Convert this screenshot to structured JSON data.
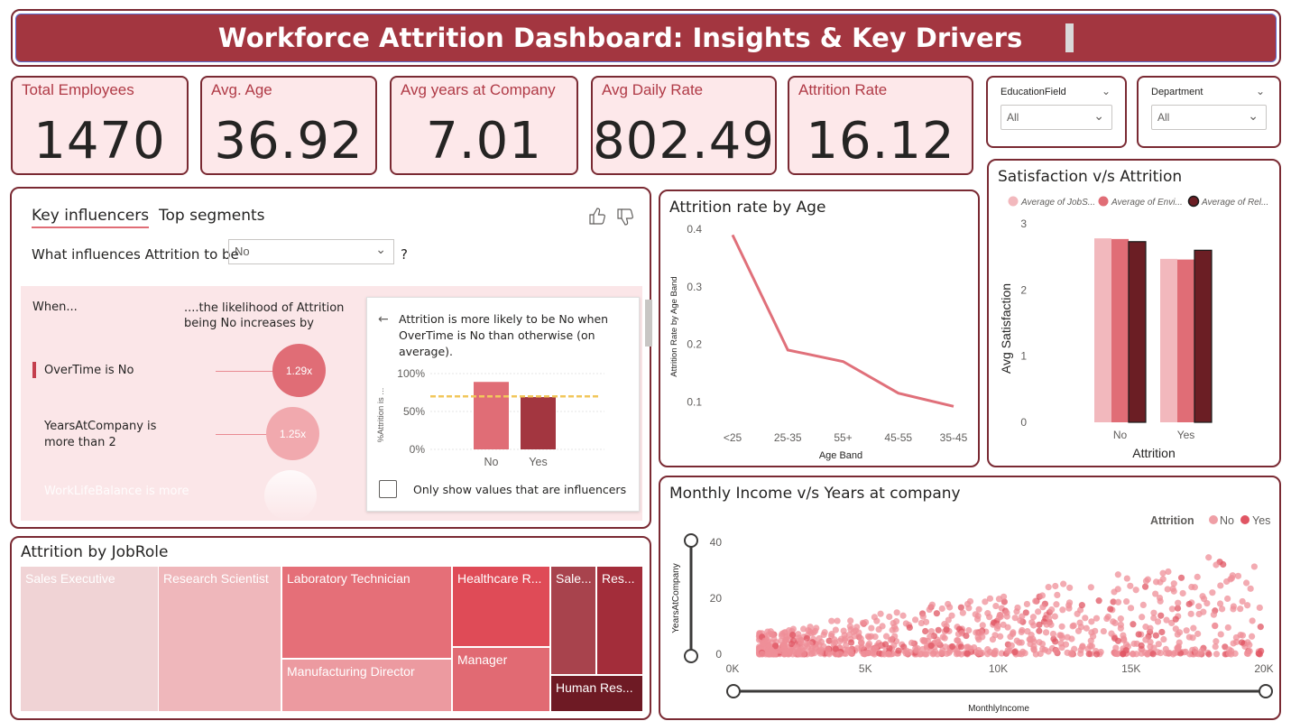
{
  "header": {
    "title": "Workforce Attrition Dashboard: Insights & Key Drivers"
  },
  "kpis": [
    {
      "label": "Total Employees",
      "value": "1470"
    },
    {
      "label": "Avg. Age",
      "value": "36.92"
    },
    {
      "label": "Avg years at Company",
      "value": "7.01"
    },
    {
      "label": "Avg Daily Rate",
      "value": "802.49"
    },
    {
      "label": "Attrition Rate",
      "value": "16.12"
    }
  ],
  "slicers": [
    {
      "label": "EducationField",
      "value": "All"
    },
    {
      "label": "Department",
      "value": "All"
    }
  ],
  "key_influencers": {
    "tab_active": "Key influencers",
    "tab_other": "Top segments",
    "question": "What influences Attrition to be",
    "dropdown_value": "No",
    "question_mark": "?",
    "col_when": "When...",
    "col_likelihood": "....the likelihood of Attrition being No increases by",
    "factors": [
      {
        "label": "OverTime is No",
        "multiplier": "1.29x"
      },
      {
        "label": "YearsAtCompany is more than 2",
        "multiplier": "1.25x"
      },
      {
        "label": "WorkLifeBalance is more",
        "multiplier": ""
      }
    ],
    "detail_text": "Attrition is more likely to be No when OverTime is No than otherwise (on average).",
    "detail_axis_label": "%Attrition is ...",
    "detail_yticks": [
      "100%",
      "50%",
      "0%"
    ],
    "detail_categories": [
      "No",
      "Yes"
    ],
    "detail_values": [
      0.89,
      0.69
    ],
    "detail_average": 0.7,
    "checkbox_label": "Only show values that are influencers"
  },
  "age_chart": {
    "title": "Attrition rate by Age",
    "chart_data": {
      "type": "line",
      "categories": [
        "<25",
        "25-35",
        "55+",
        "45-55",
        "35-45"
      ],
      "values": [
        0.39,
        0.19,
        0.17,
        0.115,
        0.092
      ],
      "xlabel": "Age Band",
      "ylabel": "Attrition Rate by Age Band",
      "yticks": [
        "0.4",
        "0.3",
        "0.2",
        "0.1"
      ],
      "ylim": [
        0.08,
        0.4
      ]
    }
  },
  "satisfaction_chart": {
    "title": "Satisfaction v/s Attrition",
    "chart_data": {
      "type": "bar",
      "categories": [
        "No",
        "Yes"
      ],
      "series": [
        {
          "name": "Average of JobS...",
          "values": [
            2.78,
            2.47
          ]
        },
        {
          "name": "Average of Envi...",
          "values": [
            2.77,
            2.46
          ]
        },
        {
          "name": "Average of Rel...",
          "values": [
            2.73,
            2.6
          ]
        }
      ],
      "xlabel": "Attrition",
      "ylabel": "Avg Satisfaction",
      "yticks": [
        "3",
        "2",
        "1",
        "0"
      ],
      "ylim": [
        0,
        3
      ]
    }
  },
  "jobrole": {
    "title": "Attrition by JobRole",
    "chart_data": {
      "type": "treemap",
      "items": [
        {
          "label": "Sales Executive"
        },
        {
          "label": "Research Scientist"
        },
        {
          "label": "Laboratory Technician"
        },
        {
          "label": "Healthcare R..."
        },
        {
          "label": "Sale..."
        },
        {
          "label": "Res..."
        },
        {
          "label": "Manufacturing Director"
        },
        {
          "label": "Manager"
        },
        {
          "label": "Human Res..."
        }
      ]
    }
  },
  "income_chart": {
    "title": "Monthly Income v/s Years at company",
    "legend_title": "Attrition",
    "legend": [
      "No",
      "Yes"
    ],
    "chart_data": {
      "type": "scatter",
      "xlabel": "MonthlyIncome",
      "ylabel": "YearsAtCompany",
      "xticks": [
        "0K",
        "5K",
        "10K",
        "15K",
        "20K"
      ],
      "yticks": [
        "40",
        "20",
        "0"
      ],
      "xlim": [
        0,
        20000
      ],
      "ylim": [
        0,
        40
      ]
    }
  },
  "colors": {
    "brand": "#a33640",
    "border": "#7a2a33",
    "kpi_bg": "#fde8ea",
    "line": "#e0707a",
    "bar1": "#f2b8bd",
    "bar2": "#e06d76",
    "bar3": "#6b1e24"
  }
}
